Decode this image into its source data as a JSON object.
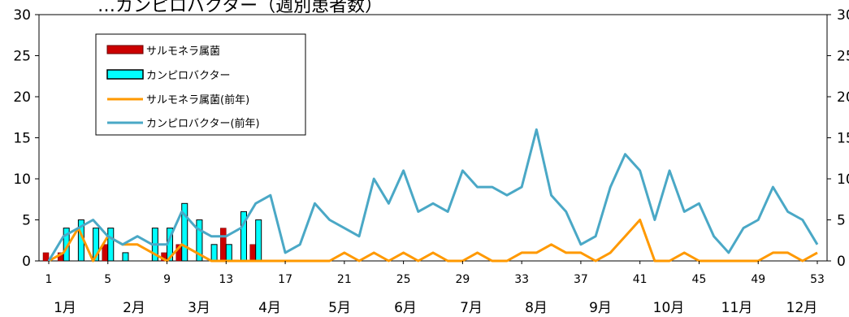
{
  "chart_data": {
    "type": "bar",
    "title": "…カンピロバクター（週別患者数）",
    "x_weeks": [
      1,
      2,
      3,
      4,
      5,
      6,
      7,
      8,
      9,
      10,
      11,
      12,
      13,
      14,
      15,
      16,
      17,
      18,
      19,
      20,
      21,
      22,
      23,
      24,
      25,
      26,
      27,
      28,
      29,
      30,
      31,
      32,
      33,
      34,
      35,
      36,
      37,
      38,
      39,
      40,
      41,
      42,
      43,
      44,
      45,
      46,
      47,
      48,
      49,
      50,
      51,
      52,
      53
    ],
    "x_tick_labels": [
      "1",
      "5",
      "9",
      "13",
      "17",
      "21",
      "25",
      "29",
      "33",
      "37",
      "41",
      "45",
      "49",
      "53"
    ],
    "month_labels": [
      "1月",
      "2月",
      "3月",
      "4月",
      "5月",
      "6月",
      "7月",
      "8月",
      "9月",
      "10月",
      "11月",
      "12月"
    ],
    "ylim": [
      0,
      30
    ],
    "y_ticks": [
      "0",
      "5",
      "10",
      "15",
      "20",
      "25",
      "30"
    ],
    "y_ticks_right": [
      "0",
      "5",
      "10",
      "15",
      "20",
      "25",
      "30"
    ],
    "grid": false,
    "legend_position": "top-left",
    "series": [
      {
        "name": "サルモネラ属菌",
        "kind": "bar",
        "color": "#cc0000",
        "values": [
          1,
          1,
          0,
          0,
          2,
          0,
          0,
          0,
          1,
          2,
          0,
          0,
          4,
          0,
          2
        ]
      },
      {
        "name": "カンピロバクター",
        "kind": "bar",
        "color": "#00ffff",
        "values": [
          0,
          4,
          5,
          4,
          4,
          1,
          0,
          4,
          4,
          7,
          5,
          2,
          2,
          6,
          5
        ]
      },
      {
        "name": "サルモネラ属菌(前年)",
        "kind": "line",
        "color": "#ff9900",
        "values": [
          0,
          1,
          4,
          0,
          3,
          2,
          2,
          1,
          0,
          2,
          1,
          0,
          0,
          0,
          0,
          0,
          0,
          0,
          0,
          0,
          1,
          0,
          1,
          0,
          1,
          0,
          1,
          0,
          0,
          1,
          0,
          0,
          1,
          1,
          2,
          1,
          1,
          0,
          1,
          3,
          5,
          0,
          0,
          1,
          0,
          0,
          0,
          0,
          0,
          1,
          1,
          0,
          1
        ]
      },
      {
        "name": "カンピロバクター(前年)",
        "kind": "line",
        "color": "#4aa8c6",
        "values": [
          0,
          3,
          4,
          5,
          3,
          2,
          3,
          2,
          2,
          6,
          4,
          3,
          3,
          4,
          7,
          8,
          1,
          2,
          7,
          5,
          4,
          3,
          10,
          7,
          11,
          6,
          7,
          6,
          11,
          9,
          9,
          8,
          9,
          16,
          8,
          6,
          2,
          3,
          9,
          13,
          11,
          5,
          11,
          6,
          7,
          3,
          1,
          4,
          5,
          9,
          6,
          5,
          2
        ]
      }
    ]
  }
}
